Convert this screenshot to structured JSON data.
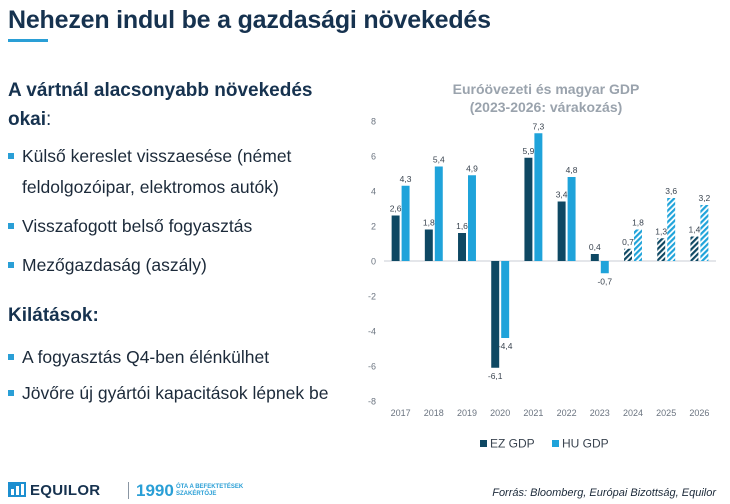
{
  "title": "Nehezen indul be a gazdasági növekedés",
  "left": {
    "reasons_heading_1": "A vártnál alacsonyabb növekedés",
    "reasons_heading_2": "okai",
    "reasons_colon": ":",
    "reasons": [
      "Külső kereslet visszaesése (német",
      "feldolgozóipar, elektromos autók)",
      "Visszafogott belső fogyasztás",
      "Mezőgazdaság (aszály)"
    ],
    "outlook_heading": "Kilátások:",
    "outlook": [
      "A fogyasztás Q4-ben élénkülhet",
      "Jövőre új gyártói kapacitások lépnek be"
    ]
  },
  "chart_data": {
    "type": "bar",
    "title": "Euróövezeti és magyar GDP",
    "subtitle": "(2023-2026: várakozás)",
    "categories": [
      "2017",
      "2018",
      "2019",
      "2020",
      "2021",
      "2022",
      "2023",
      "2024",
      "2025",
      "2026"
    ],
    "forecast_from": "2024",
    "series": [
      {
        "name": "EZ GDP",
        "color": "#0e4863",
        "values": [
          2.6,
          1.8,
          1.6,
          -6.1,
          5.9,
          3.4,
          0.4,
          0.7,
          1.3,
          1.4
        ],
        "labels": [
          "2,6",
          "1,8",
          "1,6",
          "-6,1",
          "5,9",
          "3,4",
          "0,4",
          "0,7",
          "1,3",
          "1,4"
        ]
      },
      {
        "name": "HU GDP",
        "color": "#1fa3da",
        "values": [
          4.3,
          5.4,
          4.9,
          -4.4,
          7.3,
          4.8,
          -0.7,
          1.8,
          3.6,
          3.2
        ],
        "labels": [
          "4,3",
          "5,4",
          "4,9",
          "-4,4",
          "7,3",
          "4,8",
          "-0,7",
          "1,8",
          "3,6",
          "3,2"
        ]
      }
    ],
    "ylim": [
      -8,
      8
    ],
    "yticks": [
      -8,
      -6,
      -4,
      -2,
      0,
      2,
      4,
      6,
      8
    ],
    "ytick_labels": [
      "-8",
      "-6",
      "-4",
      "-2",
      "0",
      "2",
      "4",
      "6",
      "8"
    ],
    "legend_position": "bottom",
    "grid": false
  },
  "footer": {
    "brand": "EQUILOR",
    "year": "1990",
    "tagline_1": "ÓTA A BEFEKTETÉSEK",
    "tagline_2": "SZAKÉRTŐJE",
    "source": "Forrás: Bloomberg, Európai Bizottság, Equilor"
  }
}
